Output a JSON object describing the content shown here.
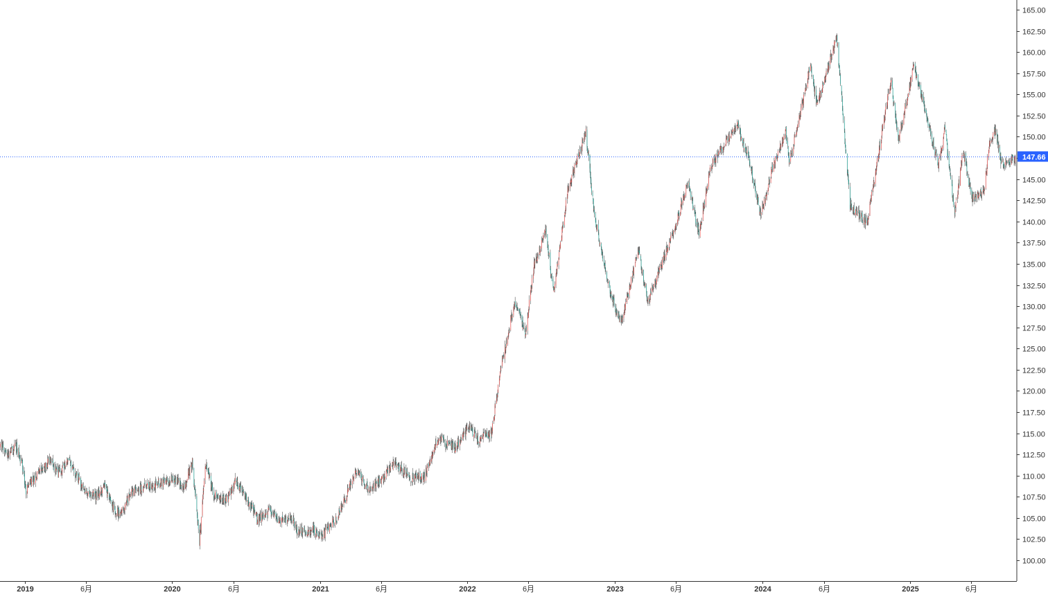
{
  "chart_data": {
    "type": "candlestick",
    "colors": {
      "up": "#ef5350",
      "down": "#26a69a",
      "wick": "#555555",
      "axis": "#333333",
      "price_line": "#2962ff",
      "price_badge": "#2962ff"
    },
    "ylim": [
      98.5,
      165.8
    ],
    "y_ticks": [
      "100.00",
      "102.50",
      "105.00",
      "107.50",
      "110.00",
      "112.50",
      "115.00",
      "117.50",
      "120.00",
      "122.50",
      "125.00",
      "127.50",
      "130.00",
      "132.50",
      "135.00",
      "137.50",
      "140.00",
      "142.50",
      "145.00",
      "147.50",
      "150.00",
      "152.50",
      "155.00",
      "157.50",
      "160.00",
      "162.50",
      "165.00"
    ],
    "x_ticks": [
      {
        "label": "2019",
        "date": "2019-01-01",
        "year": true
      },
      {
        "label": "6月",
        "date": "2019-06-01",
        "year": false
      },
      {
        "label": "2020",
        "date": "2020-01-01",
        "year": true
      },
      {
        "label": "6月",
        "date": "2020-06-01",
        "year": false
      },
      {
        "label": "2021",
        "date": "2021-01-01",
        "year": true
      },
      {
        "label": "6月",
        "date": "2021-06-01",
        "year": false
      },
      {
        "label": "2022",
        "date": "2022-01-01",
        "year": true
      },
      {
        "label": "6月",
        "date": "2022-06-01",
        "year": false
      },
      {
        "label": "2023",
        "date": "2023-01-01",
        "year": true
      },
      {
        "label": "6月",
        "date": "2023-06-01",
        "year": false
      },
      {
        "label": "2024",
        "date": "2024-01-01",
        "year": true
      },
      {
        "label": "6月",
        "date": "2024-06-01",
        "year": false
      },
      {
        "label": "2025",
        "date": "2025-01-01",
        "year": true
      },
      {
        "label": "6月",
        "date": "2025-06-01",
        "year": false
      }
    ],
    "x_range": [
      "2018-11-01",
      "2025-09-20"
    ],
    "last_price": "147.66",
    "last_price_value": 147.66,
    "close_path": [
      [
        "2018-11-01",
        113.8
      ],
      [
        "2018-11-20",
        112.4
      ],
      [
        "2018-12-10",
        113.6
      ],
      [
        "2018-12-28",
        111.0
      ],
      [
        "2019-01-03",
        108.2
      ],
      [
        "2019-01-20",
        109.5
      ],
      [
        "2019-02-15",
        110.8
      ],
      [
        "2019-03-05",
        111.8
      ],
      [
        "2019-03-25",
        110.2
      ],
      [
        "2019-04-20",
        111.7
      ],
      [
        "2019-05-10",
        109.8
      ],
      [
        "2019-06-01",
        108.3
      ],
      [
        "2019-06-25",
        107.5
      ],
      [
        "2019-07-20",
        108.6
      ],
      [
        "2019-08-10",
        106.0
      ],
      [
        "2019-08-26",
        105.4
      ],
      [
        "2019-09-20",
        107.8
      ],
      [
        "2019-10-20",
        108.6
      ],
      [
        "2019-11-20",
        109.0
      ],
      [
        "2019-12-20",
        109.4
      ],
      [
        "2020-01-10",
        109.6
      ],
      [
        "2020-01-31",
        108.6
      ],
      [
        "2020-02-20",
        111.5
      ],
      [
        "2020-03-09",
        102.3
      ],
      [
        "2020-03-24",
        111.3
      ],
      [
        "2020-04-15",
        107.6
      ],
      [
        "2020-05-15",
        107.2
      ],
      [
        "2020-06-05",
        109.4
      ],
      [
        "2020-06-30",
        107.6
      ],
      [
        "2020-07-31",
        104.8
      ],
      [
        "2020-08-31",
        105.9
      ],
      [
        "2020-09-21",
        104.4
      ],
      [
        "2020-10-20",
        105.2
      ],
      [
        "2020-11-06",
        103.4
      ],
      [
        "2020-12-15",
        103.6
      ],
      [
        "2021-01-06",
        102.9
      ],
      [
        "2021-02-15",
        105.2
      ],
      [
        "2021-03-31",
        110.6
      ],
      [
        "2021-05-01",
        108.4
      ],
      [
        "2021-06-05",
        109.6
      ],
      [
        "2021-07-01",
        111.4
      ],
      [
        "2021-08-15",
        109.7
      ],
      [
        "2021-09-15",
        109.8
      ],
      [
        "2021-10-20",
        114.4
      ],
      [
        "2021-12-01",
        113.2
      ],
      [
        "2022-01-05",
        115.8
      ],
      [
        "2022-01-28",
        114.2
      ],
      [
        "2022-03-01",
        115.0
      ],
      [
        "2022-03-28",
        123.5
      ],
      [
        "2022-04-28",
        130.5
      ],
      [
        "2022-05-25",
        127.0
      ],
      [
        "2022-06-15",
        134.8
      ],
      [
        "2022-07-14",
        139.0
      ],
      [
        "2022-08-02",
        131.5
      ],
      [
        "2022-09-07",
        144.0
      ],
      [
        "2022-10-21",
        150.5
      ],
      [
        "2022-11-10",
        141.0
      ],
      [
        "2022-12-20",
        131.5
      ],
      [
        "2023-01-16",
        128.0
      ],
      [
        "2023-02-28",
        136.5
      ],
      [
        "2023-03-24",
        130.5
      ],
      [
        "2023-05-31",
        139.5
      ],
      [
        "2023-06-30",
        144.8
      ],
      [
        "2023-07-28",
        138.5
      ],
      [
        "2023-08-25",
        146.4
      ],
      [
        "2023-10-31",
        151.5
      ],
      [
        "2023-11-30",
        147.0
      ],
      [
        "2023-12-28",
        140.9
      ],
      [
        "2024-01-31",
        147.0
      ],
      [
        "2024-02-28",
        150.5
      ],
      [
        "2024-03-08",
        146.8
      ],
      [
        "2024-04-29",
        158.5
      ],
      [
        "2024-05-15",
        153.6
      ],
      [
        "2024-07-03",
        161.8
      ],
      [
        "2024-08-05",
        142.0
      ],
      [
        "2024-09-16",
        139.8
      ],
      [
        "2024-10-31",
        153.0
      ],
      [
        "2024-11-15",
        156.4
      ],
      [
        "2024-12-03",
        149.5
      ],
      [
        "2025-01-10",
        158.6
      ],
      [
        "2025-02-15",
        151.5
      ],
      [
        "2025-03-12",
        146.8
      ],
      [
        "2025-03-28",
        151.0
      ],
      [
        "2025-04-21",
        140.8
      ],
      [
        "2025-05-12",
        148.4
      ],
      [
        "2025-06-03",
        142.8
      ],
      [
        "2025-07-03",
        143.4
      ],
      [
        "2025-07-15",
        149.0
      ],
      [
        "2025-08-01",
        150.7
      ],
      [
        "2025-08-15",
        146.6
      ],
      [
        "2025-09-19",
        147.66
      ]
    ]
  }
}
